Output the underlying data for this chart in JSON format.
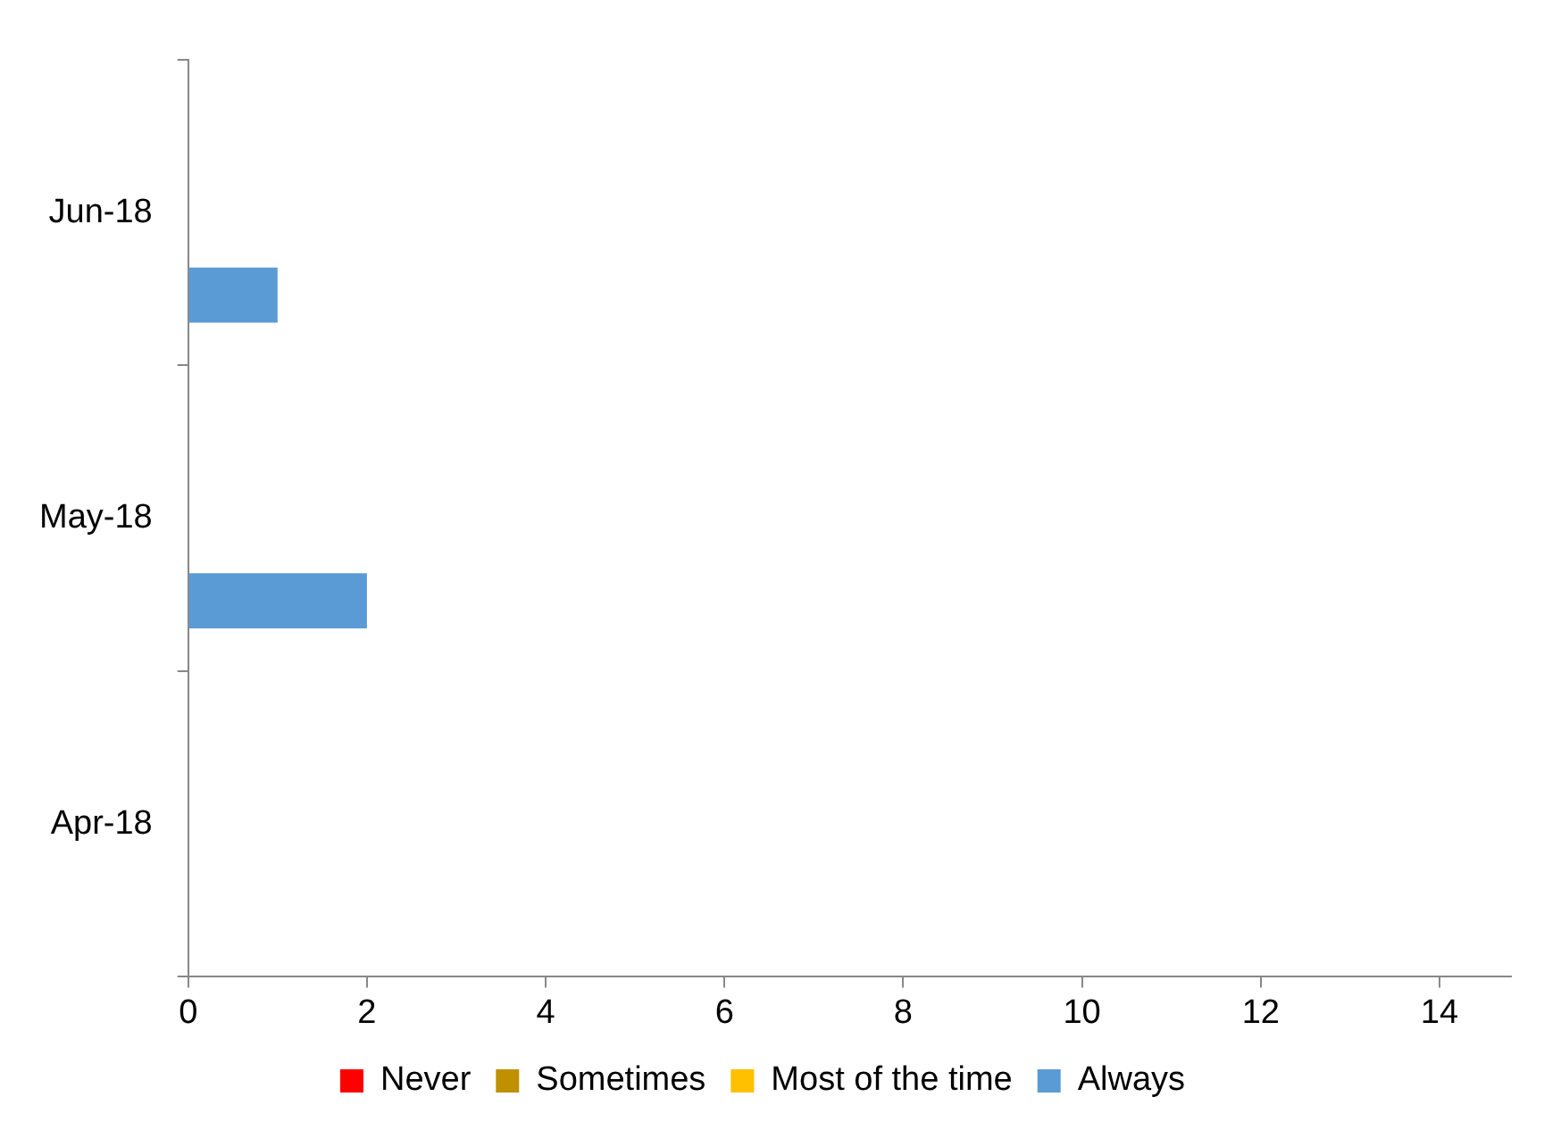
{
  "chart_data": {
    "type": "bar",
    "orientation": "horizontal",
    "categories": [
      "Jun-18",
      "May-18",
      "Apr-18"
    ],
    "series": [
      {
        "name": "Never",
        "color": "#ff0000",
        "values": [
          0,
          0,
          0
        ]
      },
      {
        "name": "Sometimes",
        "color": "#bf9000",
        "values": [
          0,
          0,
          0
        ]
      },
      {
        "name": "Most of the time",
        "color": "#ffc000",
        "values": [
          0,
          0,
          0
        ]
      },
      {
        "name": "Always",
        "color": "#5b9bd5",
        "values": [
          1,
          2,
          0
        ]
      }
    ],
    "xlim": [
      0,
      14.8
    ],
    "xticks": [
      0,
      2,
      4,
      6,
      8,
      10,
      12,
      14
    ],
    "legend": "bottom"
  }
}
